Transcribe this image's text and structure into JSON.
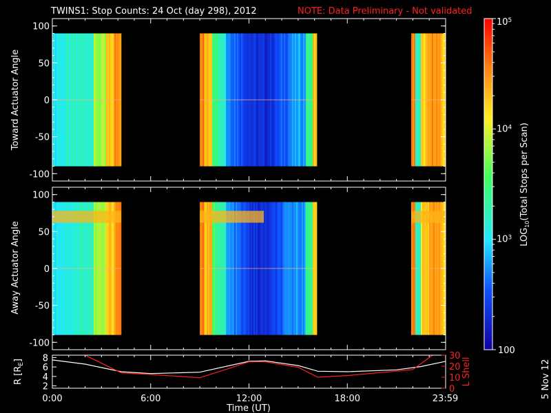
{
  "title": {
    "main": "TWINS1: Stop Counts: 24 Oct (day 298), 2012",
    "note": "NOTE: Data Preliminary - Not validated"
  },
  "stamp": "5 Nov 12",
  "colorbar": {
    "label_prefix": "LOG",
    "label_sub": "10",
    "label_suffix": "(Total Stops per Scan)",
    "ticks": [
      "10^5",
      "10^4",
      "10^3",
      "100"
    ],
    "range_log": [
      2,
      5
    ]
  },
  "chart_data": [
    {
      "type": "heatmap",
      "ylabel": "Toward Actuator Angle",
      "ylim": [
        -110,
        110
      ],
      "yticks": [
        100,
        50,
        0,
        -50,
        -100
      ],
      "xlim_hours": [
        0,
        24
      ],
      "data_y_range": [
        -90,
        90
      ],
      "data_blocks_hours": [
        [
          0,
          4.2
        ],
        [
          9.0,
          16.1
        ],
        [
          21.9,
          24.0
        ]
      ],
      "approx_log_counts": "high (~4.5) at block edges, ~3.2 in morning block core, ~2.6 in midday block core"
    },
    {
      "type": "heatmap",
      "ylabel": "Away Actuator Angle",
      "ylim": [
        -110,
        110
      ],
      "yticks": [
        100,
        50,
        0,
        -50,
        -100
      ],
      "xlim_hours": [
        0,
        24
      ],
      "data_y_range": [
        -90,
        90
      ],
      "data_blocks_hours": [
        [
          0,
          4.2
        ],
        [
          9.0,
          16.1
        ],
        [
          21.9,
          24.0
        ]
      ],
      "approx_log_counts": "enhanced band (~4.3) near +70 deg"
    },
    {
      "type": "line",
      "xlabel": "Time (UT)",
      "xticks": [
        "0:00",
        "6:00",
        "12:00",
        "18:00",
        "23:59"
      ],
      "xtick_hours": [
        0,
        6,
        12,
        18,
        23.98
      ],
      "y_left_label": "R [R",
      "y_left_label_sub": "E",
      "y_left_label_end": "]",
      "y_left_ticks": [
        8,
        6,
        4,
        2
      ],
      "y_left_lim": [
        1.5,
        8.5
      ],
      "y_right_label": "L Shell",
      "y_right_ticks": [
        30,
        20,
        10,
        0
      ],
      "y_right_lim": [
        0,
        30
      ],
      "series": [
        {
          "color": "#ffffff",
          "axis": "left",
          "x": [
            0,
            2,
            4.2,
            6,
            9,
            12,
            13,
            15,
            16.2,
            18,
            21,
            22.5,
            24
          ],
          "y": [
            7.5,
            6.6,
            5.0,
            4.6,
            4.9,
            7.2,
            7.3,
            6.3,
            5.1,
            5.0,
            5.4,
            6.1,
            7.2
          ]
        },
        {
          "color": "#ff2020",
          "axis": "right",
          "x": [
            2.0,
            4.2,
            6,
            9,
            11,
            12,
            13,
            15,
            16.2,
            18,
            21,
            22,
            23.2
          ],
          "y": [
            30,
            14,
            12.5,
            9.5,
            19,
            24,
            24,
            19,
            10,
            11.5,
            15.5,
            17,
            30
          ]
        }
      ]
    }
  ]
}
